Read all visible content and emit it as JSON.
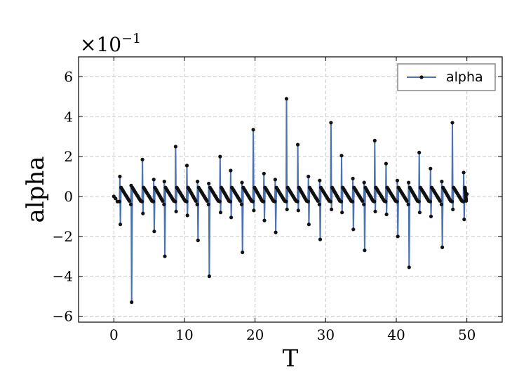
{
  "chart_data": {
    "type": "line",
    "xlabel": "T",
    "ylabel": "alpha",
    "y_multiplier_base": "×10",
    "y_multiplier_exp": "−1",
    "xlim": [
      -5,
      55
    ],
    "ylim": [
      -6.3,
      7.0
    ],
    "xticks": [
      0,
      10,
      20,
      30,
      40,
      50
    ],
    "xtick_labels": [
      "0",
      "10",
      "20",
      "30",
      "40",
      "50"
    ],
    "yticks": [
      -6,
      -4,
      -2,
      0,
      2,
      4,
      6
    ],
    "ytick_labels": [
      "−6",
      "−4",
      "−2",
      "0",
      "2",
      "4",
      "6"
    ],
    "grid": true,
    "legend_position": "top-right",
    "series": [
      {
        "name": "alpha",
        "color": "#4c72b0",
        "marker_color": "#111111",
        "period": 1.57,
        "samples_per_period": 9,
        "points_x_max": 50,
        "spikes": [
          {
            "x": 0.8,
            "high": 1.0,
            "low": -1.4
          },
          {
            "x": 2.4,
            "high": 0.55,
            "low": -5.3
          },
          {
            "x": 4.0,
            "high": 1.85,
            "low": -0.85
          },
          {
            "x": 5.6,
            "high": 0.85,
            "low": -1.75
          },
          {
            "x": 7.1,
            "high": 0.75,
            "low": -3.0
          },
          {
            "x": 8.7,
            "high": 2.5,
            "low": -0.75
          },
          {
            "x": 10.3,
            "high": 1.55,
            "low": -0.95
          },
          {
            "x": 11.8,
            "high": 0.75,
            "low": -2.2
          },
          {
            "x": 13.4,
            "high": 0.65,
            "low": -4.0
          },
          {
            "x": 15.0,
            "high": 2.0,
            "low": -0.8
          },
          {
            "x": 16.5,
            "high": 1.3,
            "low": -1.05
          },
          {
            "x": 18.1,
            "high": 0.7,
            "low": -2.8
          },
          {
            "x": 19.7,
            "high": 3.35,
            "low": -0.7
          },
          {
            "x": 21.2,
            "high": 1.15,
            "low": -1.2
          },
          {
            "x": 22.8,
            "high": 0.85,
            "low": -1.8
          },
          {
            "x": 24.4,
            "high": 4.9,
            "low": -0.65
          },
          {
            "x": 26.0,
            "high": 2.6,
            "low": -0.7
          },
          {
            "x": 27.5,
            "high": 1.0,
            "low": -1.4
          },
          {
            "x": 29.1,
            "high": 0.8,
            "low": -2.15
          },
          {
            "x": 30.7,
            "high": 3.7,
            "low": -0.65
          },
          {
            "x": 32.2,
            "high": 2.05,
            "low": -0.8
          },
          {
            "x": 33.8,
            "high": 0.9,
            "low": -1.65
          },
          {
            "x": 35.4,
            "high": 0.7,
            "low": -2.7
          },
          {
            "x": 36.9,
            "high": 2.8,
            "low": -0.75
          },
          {
            "x": 38.5,
            "high": 1.65,
            "low": -0.9
          },
          {
            "x": 40.1,
            "high": 0.8,
            "low": -2.0
          },
          {
            "x": 41.7,
            "high": 0.7,
            "low": -3.55
          },
          {
            "x": 43.2,
            "high": 2.2,
            "low": -0.8
          },
          {
            "x": 44.8,
            "high": 1.4,
            "low": -1.0
          },
          {
            "x": 46.4,
            "high": 0.75,
            "low": -2.55
          },
          {
            "x": 47.9,
            "high": 3.7,
            "low": -0.65
          },
          {
            "x": 49.5,
            "high": 1.2,
            "low": -1.15
          }
        ]
      }
    ]
  }
}
